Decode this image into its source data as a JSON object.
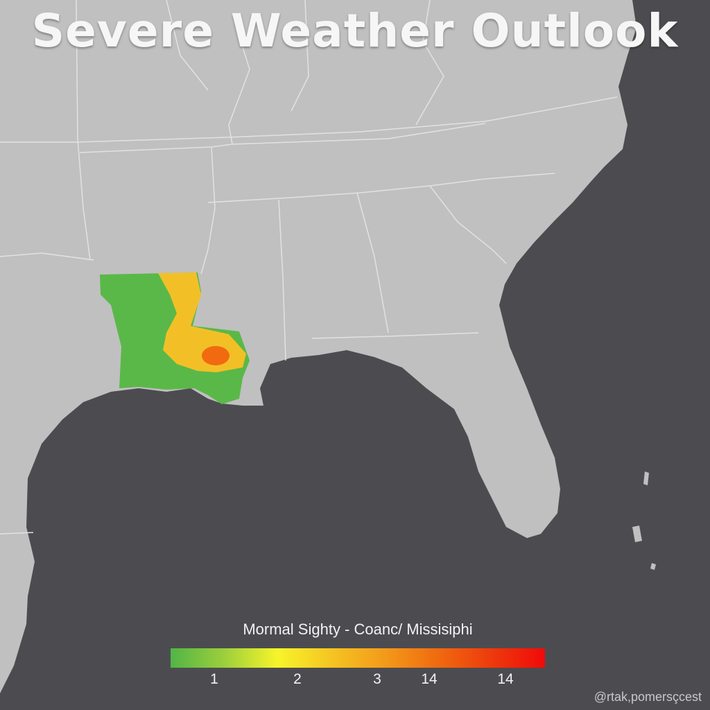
{
  "title": "Severe Weather Outlook",
  "colors": {
    "ocean": "#4c4c50",
    "land": "#c0c0c0",
    "borders": "#e2e2e2",
    "risk_marginal": "#5ab848",
    "risk_slight": "#f2c026",
    "risk_enhanced": "#f26a10"
  },
  "legend": {
    "label": "Mormal Sighty - Coanc/ Missisiphi",
    "gradient": [
      "#52b446",
      "#9ccf3c",
      "#f7f42a",
      "#f5c522",
      "#f39a1a",
      "#f06a10",
      "#ee3a0c",
      "#f00a0a"
    ],
    "ticks": [
      "1",
      "2",
      "3",
      "14",
      "14"
    ]
  },
  "credit": "@rtak,pomersçcest"
}
